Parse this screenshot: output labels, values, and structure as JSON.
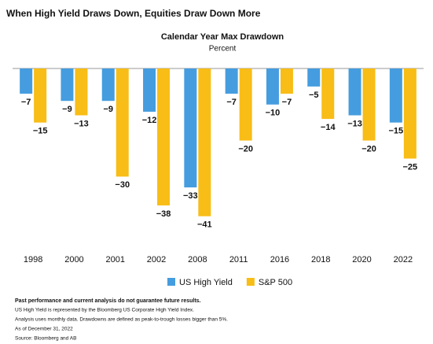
{
  "chart_data": {
    "type": "bar",
    "title": "When High Yield Draws Down, Equities Draw Down More",
    "subtitle": "Calendar Year Max Drawdown",
    "ylabel": "Percent",
    "categories": [
      "1998",
      "2000",
      "2001",
      "2002",
      "2008",
      "2011",
      "2016",
      "2018",
      "2020",
      "2022"
    ],
    "series": [
      {
        "name": "US High Yield",
        "color": "#459ddf",
        "values": [
          -7,
          -9,
          -9,
          -12,
          -33,
          -7,
          -10,
          -5,
          -13,
          -15
        ],
        "value_labels": [
          "−7",
          "−9",
          "−9",
          "−12",
          "−33",
          "−7",
          "−10",
          "−5",
          "−13",
          "−15"
        ]
      },
      {
        "name": "S&P 500",
        "color": "#f8bd16",
        "values": [
          -15,
          -13,
          -30,
          -38,
          -41,
          -20,
          -7,
          -14,
          -20,
          -25
        ],
        "value_labels": [
          "−15",
          "−13",
          "−30",
          "−38",
          "−41",
          "−20",
          "−7",
          "−14",
          "−20",
          "−25"
        ]
      }
    ],
    "ylim": [
      -45,
      0
    ],
    "footnotes": [
      "Past performance and current analysis do not guarantee future results.",
      "US High Yield is represented by the Bloomberg US Corporate High Yield Index.",
      "Analysis uses monthly data. Drawdowns are defined as peak-to-trough losses bigger than 5%.",
      "As of December 31, 2022",
      "Source: Bloomberg and AB"
    ]
  }
}
